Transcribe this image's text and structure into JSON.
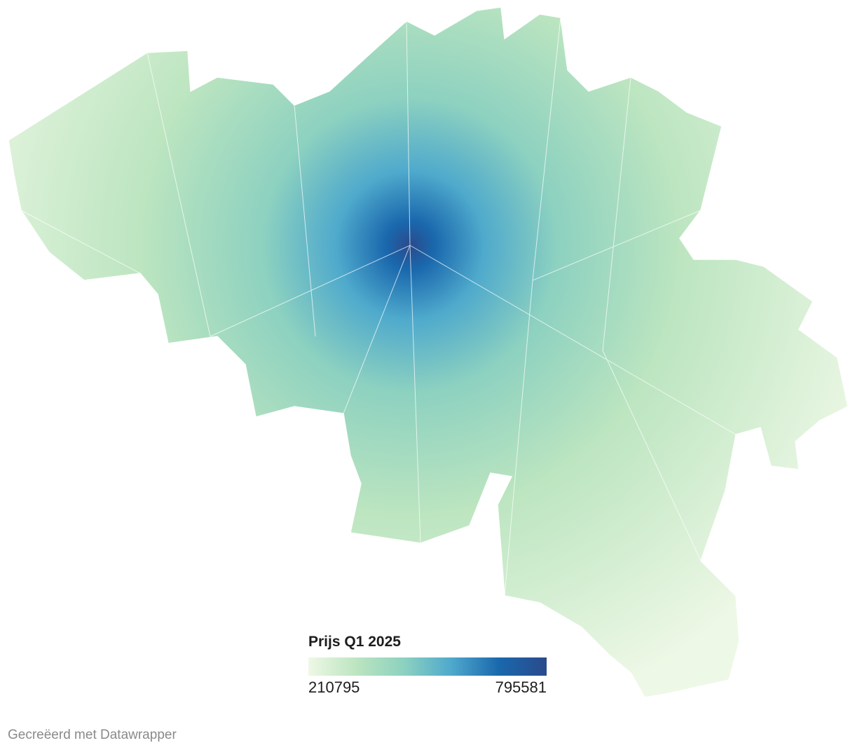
{
  "legend": {
    "title": "Prijs Q1 2025",
    "min": 210795,
    "max": 795581,
    "colors": [
      "#eef8e6",
      "#bce5c0",
      "#8dd1c0",
      "#4ea9cc",
      "#1a68ad",
      "#2a4a8c"
    ]
  },
  "footer": "Gecreëerd met Datawrapper"
}
